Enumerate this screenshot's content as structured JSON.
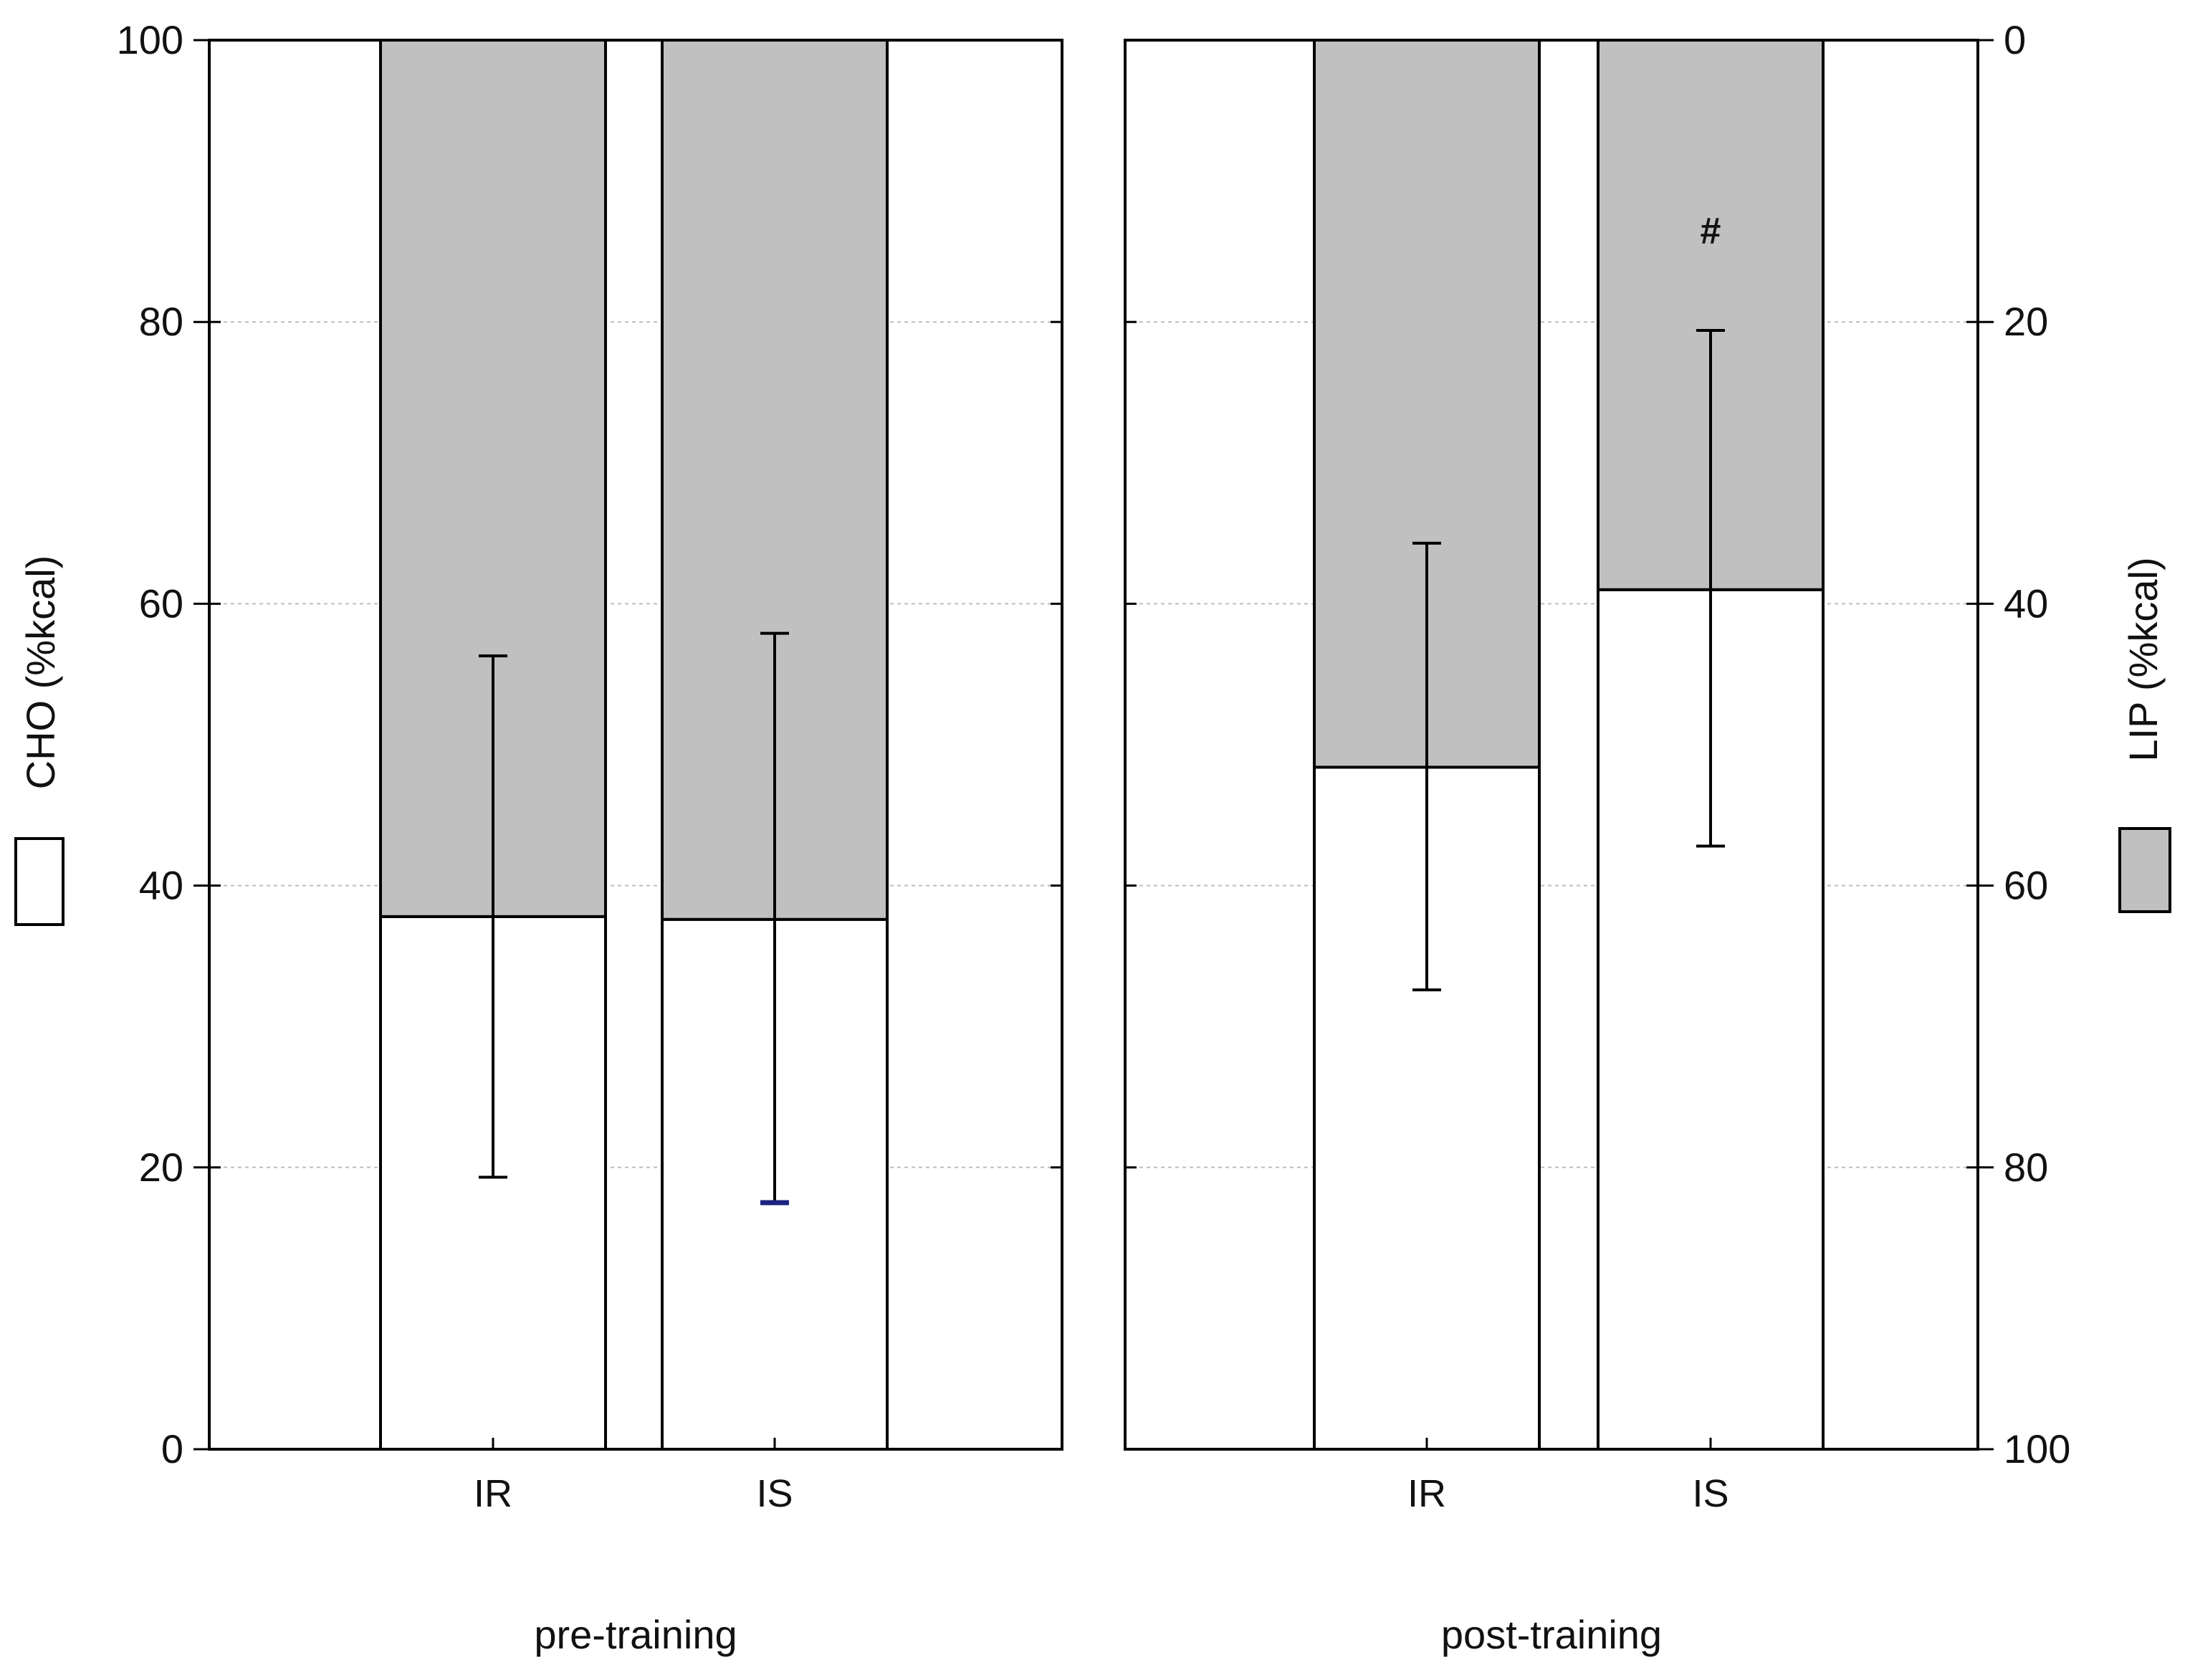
{
  "chart_data": {
    "type": "bar",
    "stacked": true,
    "panels": [
      {
        "label": "pre-training",
        "categories": [
          "IR",
          "IS"
        ],
        "series": [
          {
            "name": "CHO (%kcal)",
            "values": [
              37.8,
              37.6
            ],
            "error_low": [
              19.3,
              17.5
            ],
            "error_high": [
              56.3,
              57.9
            ]
          },
          {
            "name": "LIP (%kcal)",
            "values": [
              62.2,
              62.4
            ]
          }
        ],
        "annotations": []
      },
      {
        "label": "post-training",
        "categories": [
          "IR",
          "IS"
        ],
        "series": [
          {
            "name": "CHO (%kcal)",
            "values": [
              48.4,
              61.0
            ],
            "error_low": [
              32.6,
              42.8
            ],
            "error_high": [
              64.3,
              79.4
            ]
          },
          {
            "name": "LIP (%kcal)",
            "values": [
              51.6,
              39.0
            ]
          }
        ],
        "annotations": [
          {
            "category": "IS",
            "text": "#",
            "y": 86.5
          }
        ]
      }
    ],
    "left_axis": {
      "label": "CHO (%kcal)",
      "ylim": [
        0,
        100
      ],
      "ticks": [
        "0",
        "20",
        "40",
        "60",
        "80",
        "100"
      ]
    },
    "right_axis": {
      "label": "LIP (%kcal)",
      "ylim": [
        100,
        0
      ],
      "ticks": [
        "100",
        "80",
        "60",
        "40",
        "20",
        "0"
      ]
    },
    "grid": true,
    "legend": [
      {
        "name": "CHO (%kcal)",
        "color": "#ffffff"
      },
      {
        "name": "LIP (%kcal)",
        "color": "#c0c0c0"
      }
    ],
    "colors": {
      "cho": "#ffffff",
      "lip": "#c0c0c0",
      "error_bar": "#000000",
      "error_cap_highlight": "#1a237e"
    }
  }
}
